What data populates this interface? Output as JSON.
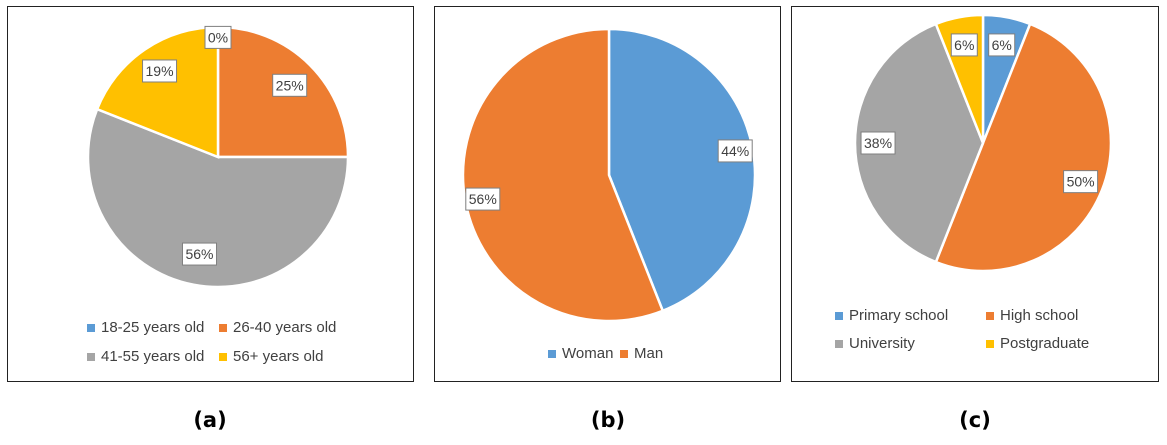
{
  "colors": {
    "blue": "#5b9bd5",
    "orange": "#ed7d31",
    "gray": "#a5a5a5",
    "yellow": "#ffc000"
  },
  "chart_data": [
    {
      "type": "pie",
      "caption": "(a)",
      "title": "",
      "slices": [
        {
          "label": "18-25 years old",
          "value": 0,
          "display": "0%",
          "color": "#5b9bd5"
        },
        {
          "label": "26-40  years old",
          "value": 25,
          "display": "25%",
          "color": "#ed7d31"
        },
        {
          "label": "41-55  years old",
          "value": 56,
          "display": "56%",
          "color": "#a5a5a5"
        },
        {
          "label": "56+  years old",
          "value": 19,
          "display": "19%",
          "color": "#ffc000"
        }
      ],
      "legend_position": "bottom"
    },
    {
      "type": "pie",
      "caption": "(b)",
      "title": "",
      "slices": [
        {
          "label": "Woman",
          "value": 44,
          "display": "44%",
          "color": "#5b9bd5"
        },
        {
          "label": "Man",
          "value": 56,
          "display": "56%",
          "color": "#ed7d31"
        }
      ],
      "legend_position": "bottom"
    },
    {
      "type": "pie",
      "caption": "(c)",
      "title": "",
      "slices": [
        {
          "label": "Primary school",
          "value": 6,
          "display": "6%",
          "color": "#5b9bd5"
        },
        {
          "label": "High school",
          "value": 50,
          "display": "50%",
          "color": "#ed7d31"
        },
        {
          "label": "University",
          "value": 38,
          "display": "38%",
          "color": "#a5a5a5"
        },
        {
          "label": "Postgraduate",
          "value": 6,
          "display": "6%",
          "color": "#ffc000"
        }
      ],
      "legend_position": "bottom"
    }
  ]
}
